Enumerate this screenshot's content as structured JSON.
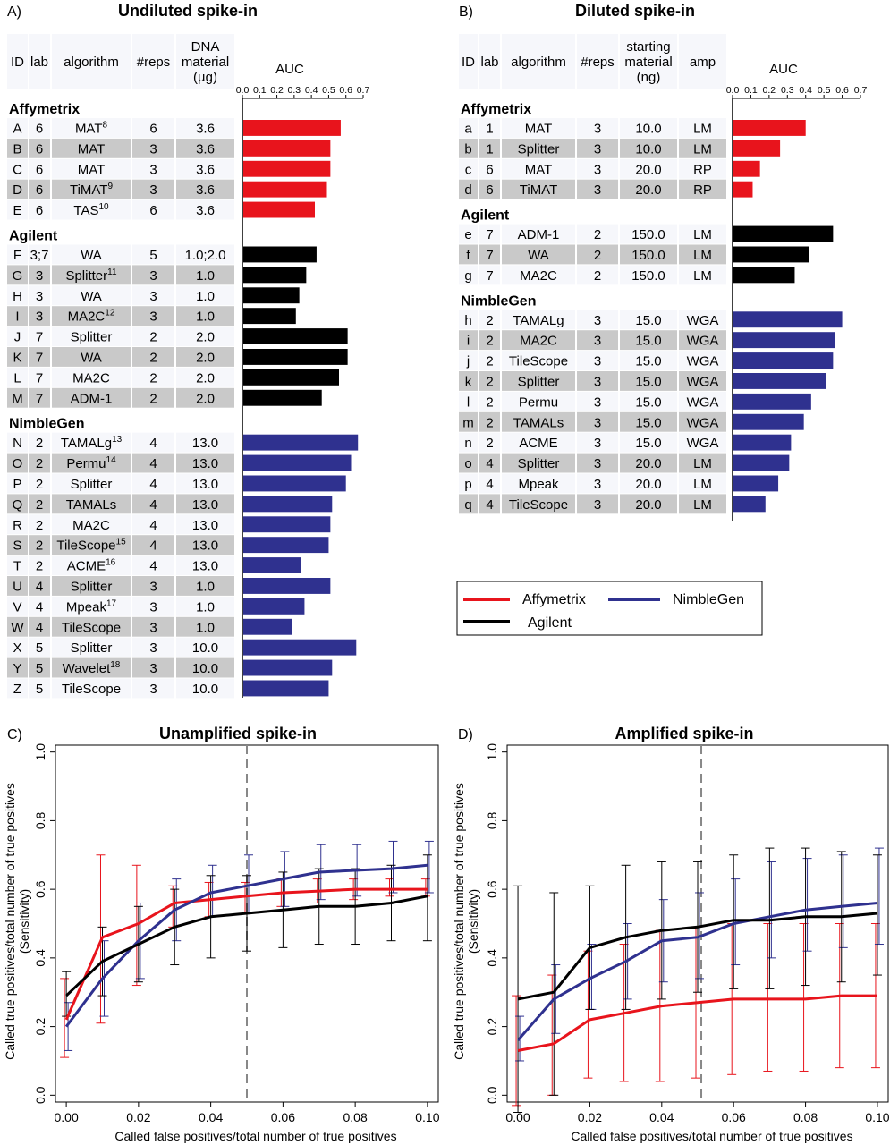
{
  "legend": {
    "items": [
      {
        "name": "Affymetrix",
        "color": "#e8141c"
      },
      {
        "name": "NimbleGen",
        "color": "#2f318f"
      },
      {
        "name": "Agilent",
        "color": "#000000"
      }
    ]
  },
  "chart_data": [
    {
      "type": "table",
      "panel": "A)",
      "title": "Undiluted spike-in",
      "auc_label": "AUC",
      "columns": [
        "ID",
        "lab",
        "algorithm",
        "#reps",
        "DNA material (µg)"
      ],
      "column_lines": [
        [
          "ID"
        ],
        [
          "lab"
        ],
        [
          "algorithm"
        ],
        [
          "#reps"
        ],
        [
          "DNA",
          "material",
          "(µg)"
        ]
      ],
      "xlim": [
        0,
        0.7
      ],
      "ticks": [
        "0.0",
        "0.1",
        "0.2",
        "0.3",
        "0.4",
        "0.5",
        "0.6",
        "0.7"
      ],
      "groups": [
        {
          "name": "Affymetrix",
          "color": "#e8141c",
          "rows": [
            {
              "id": "A",
              "lab": "6",
              "alg": "MAT",
              "sup": "8",
              "reps": "6",
              "mat": "3.6",
              "auc": 0.57
            },
            {
              "id": "B",
              "lab": "6",
              "alg": "MAT",
              "sup": "",
              "reps": "3",
              "mat": "3.6",
              "auc": 0.51
            },
            {
              "id": "C",
              "lab": "6",
              "alg": "MAT",
              "sup": "",
              "reps": "3",
              "mat": "3.6",
              "auc": 0.51
            },
            {
              "id": "D",
              "lab": "6",
              "alg": "TiMAT",
              "sup": "9",
              "reps": "3",
              "mat": "3.6",
              "auc": 0.49
            },
            {
              "id": "E",
              "lab": "6",
              "alg": "TAS",
              "sup": "10",
              "reps": "6",
              "mat": "3.6",
              "auc": 0.42
            }
          ]
        },
        {
          "name": "Agilent",
          "color": "#000000",
          "rows": [
            {
              "id": "F",
              "lab": "3;7",
              "alg": "WA",
              "sup": "",
              "reps": "5",
              "mat": "1.0;2.0",
              "auc": 0.43
            },
            {
              "id": "G",
              "lab": "3",
              "alg": "Splitter",
              "sup": "11",
              "reps": "3",
              "mat": "1.0",
              "auc": 0.37
            },
            {
              "id": "H",
              "lab": "3",
              "alg": "WA",
              "sup": "",
              "reps": "3",
              "mat": "1.0",
              "auc": 0.33
            },
            {
              "id": "I",
              "lab": "3",
              "alg": "MA2C",
              "sup": "12",
              "reps": "3",
              "mat": "1.0",
              "auc": 0.31
            },
            {
              "id": "J",
              "lab": "7",
              "alg": "Splitter",
              "sup": "",
              "reps": "2",
              "mat": "2.0",
              "auc": 0.61
            },
            {
              "id": "K",
              "lab": "7",
              "alg": "WA",
              "sup": "",
              "reps": "2",
              "mat": "2.0",
              "auc": 0.61
            },
            {
              "id": "L",
              "lab": "7",
              "alg": "MA2C",
              "sup": "",
              "reps": "2",
              "mat": "2.0",
              "auc": 0.56
            },
            {
              "id": "M",
              "lab": "7",
              "alg": "ADM-1",
              "sup": "",
              "reps": "2",
              "mat": "2.0",
              "auc": 0.46
            }
          ]
        },
        {
          "name": "NimbleGen",
          "color": "#2f318f",
          "rows": [
            {
              "id": "N",
              "lab": "2",
              "alg": "TAMALg",
              "sup": "13",
              "reps": "4",
              "mat": "13.0",
              "auc": 0.67
            },
            {
              "id": "O",
              "lab": "2",
              "alg": "Permu",
              "sup": "14",
              "reps": "4",
              "mat": "13.0",
              "auc": 0.63
            },
            {
              "id": "P",
              "lab": "2",
              "alg": "Splitter",
              "sup": "",
              "reps": "4",
              "mat": "13.0",
              "auc": 0.6
            },
            {
              "id": "Q",
              "lab": "2",
              "alg": "TAMALs",
              "sup": "",
              "reps": "4",
              "mat": "13.0",
              "auc": 0.52
            },
            {
              "id": "R",
              "lab": "2",
              "alg": "MA2C",
              "sup": "",
              "reps": "4",
              "mat": "13.0",
              "auc": 0.51
            },
            {
              "id": "S",
              "lab": "2",
              "alg": "TileScope",
              "sup": "15",
              "reps": "4",
              "mat": "13.0",
              "auc": 0.5
            },
            {
              "id": "T",
              "lab": "2",
              "alg": "ACME",
              "sup": "16",
              "reps": "4",
              "mat": "13.0",
              "auc": 0.34
            },
            {
              "id": "U",
              "lab": "4",
              "alg": "Splitter",
              "sup": "",
              "reps": "3",
              "mat": "1.0",
              "auc": 0.51
            },
            {
              "id": "V",
              "lab": "4",
              "alg": "Mpeak",
              "sup": "17",
              "reps": "3",
              "mat": "1.0",
              "auc": 0.36
            },
            {
              "id": "W",
              "lab": "4",
              "alg": "TileScope",
              "sup": "",
              "reps": "3",
              "mat": "1.0",
              "auc": 0.29
            },
            {
              "id": "X",
              "lab": "5",
              "alg": "Splitter",
              "sup": "",
              "reps": "3",
              "mat": "10.0",
              "auc": 0.66
            },
            {
              "id": "Y",
              "lab": "5",
              "alg": "Wavelet",
              "sup": "18",
              "reps": "3",
              "mat": "10.0",
              "auc": 0.52
            },
            {
              "id": "Z",
              "lab": "5",
              "alg": "TileScope",
              "sup": "",
              "reps": "3",
              "mat": "10.0",
              "auc": 0.5
            }
          ]
        }
      ]
    },
    {
      "type": "table",
      "panel": "B)",
      "title": "Diluted spike-in",
      "auc_label": "AUC",
      "columns": [
        "ID",
        "lab",
        "algorithm",
        "#reps",
        "starting material (ng)",
        "amp"
      ],
      "column_lines": [
        [
          "ID"
        ],
        [
          "lab"
        ],
        [
          "algorithm"
        ],
        [
          "#reps"
        ],
        [
          "starting",
          "material",
          "(ng)"
        ],
        [
          "amp"
        ]
      ],
      "xlim": [
        0,
        0.7
      ],
      "ticks": [
        "0.0",
        "0.1",
        "0.2",
        "0.3",
        "0.4",
        "0.5",
        "0.6",
        "0.7"
      ],
      "groups": [
        {
          "name": "Affymetrix",
          "color": "#e8141c",
          "rows": [
            {
              "id": "a",
              "lab": "1",
              "alg": "MAT",
              "reps": "3",
              "mat": "10.0",
              "amp": "LM",
              "auc": 0.4
            },
            {
              "id": "b",
              "lab": "1",
              "alg": "Splitter",
              "reps": "3",
              "mat": "10.0",
              "amp": "LM",
              "auc": 0.26
            },
            {
              "id": "c",
              "lab": "6",
              "alg": "MAT",
              "reps": "3",
              "mat": "20.0",
              "amp": "RP",
              "auc": 0.15
            },
            {
              "id": "d",
              "lab": "6",
              "alg": "TiMAT",
              "reps": "3",
              "mat": "20.0",
              "amp": "RP",
              "auc": 0.11
            }
          ]
        },
        {
          "name": "Agilent",
          "color": "#000000",
          "rows": [
            {
              "id": "e",
              "lab": "7",
              "alg": "ADM-1",
              "reps": "2",
              "mat": "150.0",
              "amp": "LM",
              "auc": 0.55
            },
            {
              "id": "f",
              "lab": "7",
              "alg": "WA",
              "reps": "2",
              "mat": "150.0",
              "amp": "LM",
              "auc": 0.42
            },
            {
              "id": "g",
              "lab": "7",
              "alg": "MA2C",
              "reps": "2",
              "mat": "150.0",
              "amp": "LM",
              "auc": 0.34
            }
          ]
        },
        {
          "name": "NimbleGen",
          "color": "#2f318f",
          "rows": [
            {
              "id": "h",
              "lab": "2",
              "alg": "TAMALg",
              "reps": "3",
              "mat": "15.0",
              "amp": "WGA",
              "auc": 0.6
            },
            {
              "id": "i",
              "lab": "2",
              "alg": "MA2C",
              "reps": "3",
              "mat": "15.0",
              "amp": "WGA",
              "auc": 0.56
            },
            {
              "id": "j",
              "lab": "2",
              "alg": "TileScope",
              "reps": "3",
              "mat": "15.0",
              "amp": "WGA",
              "auc": 0.55
            },
            {
              "id": "k",
              "lab": "2",
              "alg": "Splitter",
              "reps": "3",
              "mat": "15.0",
              "amp": "WGA",
              "auc": 0.51
            },
            {
              "id": "l",
              "lab": "2",
              "alg": "Permu",
              "reps": "3",
              "mat": "15.0",
              "amp": "WGA",
              "auc": 0.43
            },
            {
              "id": "m",
              "lab": "2",
              "alg": "TAMALs",
              "reps": "3",
              "mat": "15.0",
              "amp": "WGA",
              "auc": 0.39
            },
            {
              "id": "n",
              "lab": "2",
              "alg": "ACME",
              "reps": "3",
              "mat": "15.0",
              "amp": "WGA",
              "auc": 0.32
            },
            {
              "id": "o",
              "lab": "4",
              "alg": "Splitter",
              "reps": "3",
              "mat": "20.0",
              "amp": "LM",
              "auc": 0.31
            },
            {
              "id": "p",
              "lab": "4",
              "alg": "Mpeak",
              "reps": "3",
              "mat": "20.0",
              "amp": "LM",
              "auc": 0.25
            },
            {
              "id": "q",
              "lab": "4",
              "alg": "TileScope",
              "reps": "3",
              "mat": "20.0",
              "amp": "LM",
              "auc": 0.18
            }
          ]
        }
      ]
    },
    {
      "type": "line",
      "panel": "C)",
      "title": "Unamplified spike-in",
      "xlabel": "Called false positives/total number of true positives",
      "ylabel": [
        "Called true positives/total number of true positives",
        "(Sensitivity)"
      ],
      "xlim": [
        -0.003,
        0.103
      ],
      "ylim": [
        -0.02,
        1.02
      ],
      "xticks": [
        "0.00",
        "0.02",
        "0.04",
        "0.06",
        "0.08",
        "0.10"
      ],
      "yticks": [
        "0.0",
        "0.2",
        "0.4",
        "0.6",
        "0.8",
        "1.0"
      ],
      "vline": 0.05,
      "x": [
        0.0,
        0.01,
        0.02,
        0.03,
        0.04,
        0.05,
        0.06,
        0.07,
        0.08,
        0.09,
        0.1
      ],
      "series": [
        {
          "name": "Affymetrix",
          "color": "#e8141c",
          "values": [
            0.22,
            0.46,
            0.5,
            0.56,
            0.57,
            0.58,
            0.59,
            0.595,
            0.6,
            0.6,
            0.6
          ],
          "lower": [
            0.11,
            0.21,
            0.32,
            0.49,
            0.52,
            0.53,
            0.55,
            0.56,
            0.57,
            0.58,
            0.58
          ],
          "upper": [
            0.34,
            0.7,
            0.67,
            0.61,
            0.62,
            0.62,
            0.63,
            0.63,
            0.63,
            0.63,
            0.63
          ]
        },
        {
          "name": "NimbleGen",
          "color": "#2f318f",
          "values": [
            0.2,
            0.34,
            0.45,
            0.54,
            0.59,
            0.61,
            0.63,
            0.65,
            0.655,
            0.66,
            0.67
          ],
          "lower": [
            0.13,
            0.23,
            0.34,
            0.45,
            0.52,
            0.53,
            0.55,
            0.57,
            0.58,
            0.59,
            0.59
          ],
          "upper": [
            0.27,
            0.45,
            0.56,
            0.63,
            0.67,
            0.7,
            0.71,
            0.73,
            0.73,
            0.74,
            0.74
          ]
        },
        {
          "name": "Agilent",
          "color": "#000000",
          "values": [
            0.29,
            0.39,
            0.44,
            0.49,
            0.52,
            0.53,
            0.54,
            0.55,
            0.55,
            0.56,
            0.58
          ],
          "lower": [
            0.23,
            0.29,
            0.33,
            0.38,
            0.4,
            0.42,
            0.43,
            0.44,
            0.44,
            0.45,
            0.45
          ],
          "upper": [
            0.36,
            0.49,
            0.55,
            0.6,
            0.64,
            0.64,
            0.65,
            0.66,
            0.66,
            0.67,
            0.7
          ]
        }
      ]
    },
    {
      "type": "line",
      "panel": "D)",
      "title": "Amplified spike-in",
      "xlabel": "Called false positives/total number of true positives",
      "ylabel": [
        "Called true positives/total number of true positives",
        "(Sensitivity)"
      ],
      "xlim": [
        -0.003,
        0.103
      ],
      "ylim": [
        -0.02,
        1.02
      ],
      "xticks": [
        "0.00",
        "0.02",
        "0.04",
        "0.06",
        "0.08",
        "0.10"
      ],
      "yticks": [
        "0.0",
        "0.2",
        "0.4",
        "0.6",
        "0.8",
        "1.0"
      ],
      "vline": 0.051,
      "x": [
        0.0,
        0.01,
        0.02,
        0.03,
        0.04,
        0.05,
        0.06,
        0.07,
        0.08,
        0.09,
        0.1
      ],
      "series": [
        {
          "name": "Affymetrix",
          "color": "#e8141c",
          "values": [
            0.13,
            0.15,
            0.22,
            0.24,
            0.26,
            0.27,
            0.28,
            0.28,
            0.28,
            0.29,
            0.29
          ],
          "lower": [
            -0.03,
            0.0,
            0.05,
            0.04,
            0.04,
            0.05,
            0.06,
            0.07,
            0.07,
            0.08,
            0.08
          ],
          "upper": [
            0.29,
            0.35,
            0.42,
            0.44,
            0.48,
            0.49,
            0.5,
            0.5,
            0.5,
            0.5,
            0.5
          ]
        },
        {
          "name": "NimbleGen",
          "color": "#2f318f",
          "values": [
            0.16,
            0.28,
            0.34,
            0.39,
            0.45,
            0.46,
            0.5,
            0.52,
            0.54,
            0.55,
            0.56
          ],
          "lower": [
            0.1,
            0.18,
            0.25,
            0.28,
            0.33,
            0.34,
            0.38,
            0.4,
            0.42,
            0.43,
            0.44
          ],
          "upper": [
            0.23,
            0.38,
            0.44,
            0.5,
            0.57,
            0.59,
            0.63,
            0.68,
            0.69,
            0.7,
            0.72
          ]
        },
        {
          "name": "Agilent",
          "color": "#000000",
          "values": [
            0.28,
            0.3,
            0.43,
            0.46,
            0.48,
            0.49,
            0.51,
            0.51,
            0.52,
            0.52,
            0.53
          ],
          "lower": [
            -0.05,
            0.0,
            0.25,
            0.25,
            0.28,
            0.3,
            0.31,
            0.31,
            0.32,
            0.33,
            0.35
          ],
          "upper": [
            0.61,
            0.59,
            0.61,
            0.67,
            0.68,
            0.68,
            0.7,
            0.72,
            0.72,
            0.71,
            0.7
          ]
        }
      ]
    }
  ]
}
